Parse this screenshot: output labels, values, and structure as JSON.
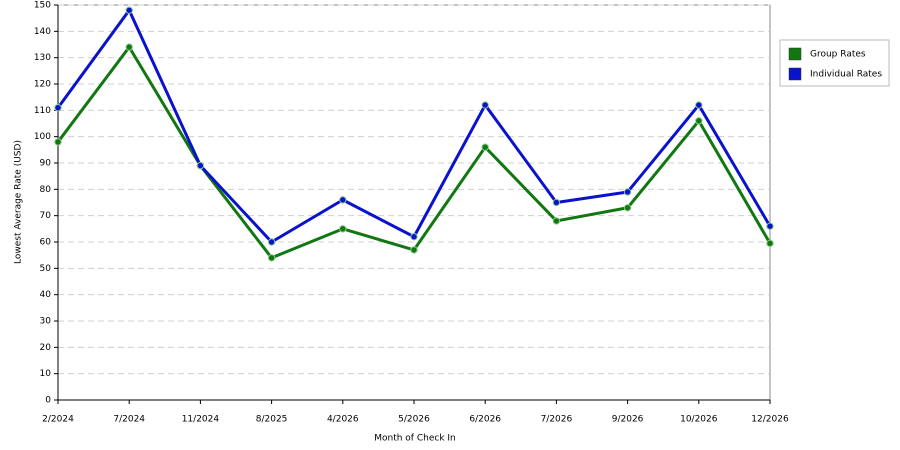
{
  "chart_data": {
    "type": "line",
    "x_label": "Month of Check In",
    "y_label": "Lowest Average Rate (USD)",
    "categories": [
      "2/2024",
      "7/2024",
      "11/2024",
      "8/2025",
      "4/2026",
      "5/2026",
      "6/2026",
      "7/2026",
      "9/2026",
      "10/2026",
      "12/2026"
    ],
    "series": [
      {
        "name": "Group Rates",
        "color": "#117711",
        "values": [
          98,
          134,
          89,
          54,
          65,
          57,
          96,
          68,
          73,
          106,
          59.5
        ]
      },
      {
        "name": "Individual Rates",
        "color": "#0a12cc",
        "values": [
          111,
          148,
          89,
          60,
          76,
          62,
          112,
          75,
          79,
          112,
          66
        ]
      }
    ],
    "ylim": [
      0,
      150
    ],
    "yticks": [
      0,
      10,
      20,
      30,
      40,
      50,
      60,
      70,
      80,
      90,
      100,
      110,
      120,
      130,
      140,
      150
    ],
    "grid": true,
    "legend": "right"
  }
}
